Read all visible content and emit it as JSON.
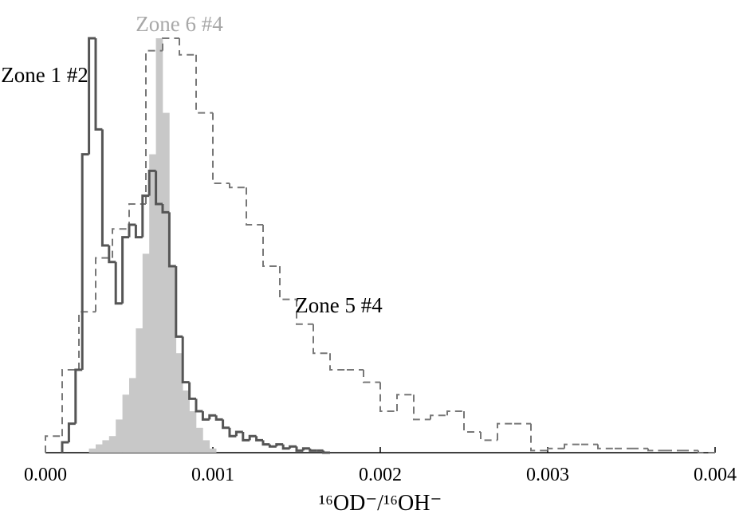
{
  "chart_data": {
    "type": "histogram",
    "xlabel": "¹⁶OD⁻/¹⁶OH⁻",
    "xlim": [
      0,
      0.004
    ],
    "xticks": [
      {
        "value": 0,
        "label": "0.000"
      },
      {
        "value": 0.001,
        "label": "0.001"
      },
      {
        "value": 0.002,
        "label": "0.002"
      },
      {
        "value": 0.003,
        "label": "0.003"
      },
      {
        "value": 0.004,
        "label": "0.004"
      }
    ],
    "ylim": [
      0,
      100
    ],
    "series": [
      {
        "name": "Zone 6 #4",
        "color": "#c8c8c8",
        "style": "filled",
        "bins": [
          0.00026,
          0.0003,
          0.00034,
          0.00038,
          0.00042,
          0.00046,
          0.0005,
          0.00054,
          0.00058,
          0.00062,
          0.00066,
          0.0007,
          0.00074,
          0.00078,
          0.00082,
          0.00086,
          0.0009,
          0.00094,
          0.00098,
          0.00102
        ],
        "values": [
          1,
          2,
          3,
          4,
          8,
          14,
          18,
          30,
          48,
          72,
          100,
          82,
          45,
          24,
          15,
          10,
          6,
          3,
          1
        ]
      },
      {
        "name": "Zone 5 #4",
        "color": "#777777",
        "style": "dashed",
        "bins": [
          0,
          0.0001,
          0.0002,
          0.0003,
          0.0004,
          0.0005,
          0.0006,
          0.0007,
          0.0008,
          0.0009,
          0.001,
          0.0011,
          0.0012,
          0.0013,
          0.0014,
          0.0015,
          0.0016,
          0.0017,
          0.0018,
          0.0019,
          0.002,
          0.0021,
          0.0022,
          0.0023,
          0.0024,
          0.0025,
          0.0026,
          0.0027,
          0.0028,
          0.0029,
          0.003,
          0.0031,
          0.0032,
          0.0033,
          0.0034,
          0.0035,
          0.0036,
          0.0037,
          0.0038,
          0.0039,
          0.004
        ],
        "values": [
          4,
          20,
          34,
          47,
          54,
          60,
          97,
          100,
          96,
          82,
          65,
          64,
          55,
          45,
          37,
          31,
          24,
          20,
          20,
          17,
          10,
          14,
          8,
          9,
          10,
          5,
          3,
          7,
          7,
          0.5,
          1,
          2,
          2,
          1,
          1,
          1,
          0.5,
          0.5,
          0.5,
          0
        ]
      },
      {
        "name": "Zone 1 #2",
        "color": "#555555",
        "style": "solid",
        "bins": [
          0.0001,
          0.00014,
          0.00018,
          0.00022,
          0.00026,
          0.0003,
          0.00034,
          0.00038,
          0.00042,
          0.00046,
          0.0005,
          0.00054,
          0.00058,
          0.00062,
          0.00066,
          0.0007,
          0.00074,
          0.00078,
          0.00082,
          0.00086,
          0.0009,
          0.00094,
          0.00098,
          0.00102,
          0.00106,
          0.0011,
          0.00114,
          0.00118,
          0.00122,
          0.00126,
          0.0013,
          0.00134,
          0.00138,
          0.00142,
          0.00146,
          0.0015,
          0.00154,
          0.00158,
          0.00162,
          0.00166,
          0.0017
        ],
        "values": [
          2.5,
          7,
          20,
          72,
          100,
          78,
          50,
          46,
          36,
          52,
          55,
          52,
          62,
          68,
          60,
          58,
          45,
          28,
          17,
          13,
          10,
          8,
          9,
          8,
          6,
          4,
          5,
          3,
          4,
          3,
          2,
          1.5,
          2,
          1,
          1.5,
          0.5,
          1,
          0.5,
          0.5,
          0
        ]
      }
    ]
  }
}
